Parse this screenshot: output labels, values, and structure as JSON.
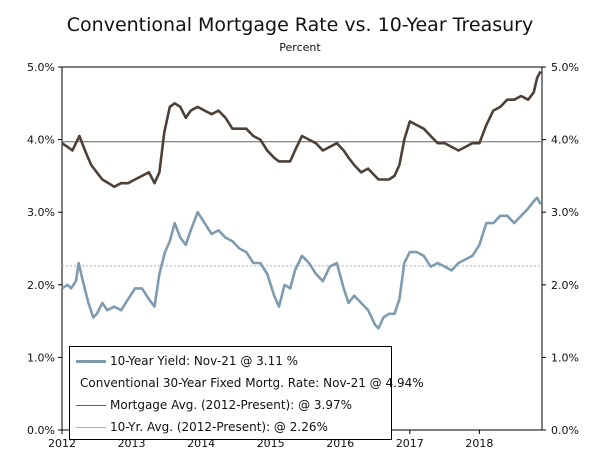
{
  "chart_data": {
    "type": "line",
    "title": "Conventional Mortgage Rate vs. 10-Year Treasury",
    "subtitle": "Percent",
    "xlabel": "",
    "ylabel": "Percent",
    "xlim": [
      2012.0,
      2018.9
    ],
    "ylim": [
      0,
      5
    ],
    "x_ticks": [
      "2012",
      "2013",
      "2014",
      "2015",
      "2016",
      "2017",
      "2018"
    ],
    "y_ticks_left": [
      "0.0%",
      "1.0%",
      "2.0%",
      "3.0%",
      "4.0%",
      "5.0%"
    ],
    "y_ticks_right": [
      "0.0%",
      "1.0%",
      "2.0%",
      "3.0%",
      "4.0%",
      "5.0%"
    ],
    "series": [
      {
        "name": "10-Year Yield",
        "legend": "10-Year Yield: Nov-21 @ 3.11 %",
        "color": "#7f9bb0",
        "x": [
          2012.0,
          2012.08,
          2012.13,
          2012.2,
          2012.24,
          2012.3,
          2012.38,
          2012.45,
          2012.5,
          2012.58,
          2012.65,
          2012.75,
          2012.85,
          2012.95,
          2013.05,
          2013.15,
          2013.25,
          2013.33,
          2013.4,
          2013.48,
          2013.55,
          2013.62,
          2013.7,
          2013.78,
          2013.85,
          2013.95,
          2014.05,
          2014.15,
          2014.25,
          2014.35,
          2014.45,
          2014.55,
          2014.65,
          2014.75,
          2014.85,
          2014.95,
          2015.05,
          2015.12,
          2015.2,
          2015.28,
          2015.35,
          2015.45,
          2015.55,
          2015.65,
          2015.75,
          2015.85,
          2015.95,
          2016.05,
          2016.12,
          2016.2,
          2016.3,
          2016.4,
          2016.5,
          2016.55,
          2016.62,
          2016.7,
          2016.78,
          2016.85,
          2016.92,
          2017.0,
          2017.1,
          2017.2,
          2017.3,
          2017.4,
          2017.5,
          2017.6,
          2017.7,
          2017.8,
          2017.9,
          2018.0,
          2018.1,
          2018.2,
          2018.3,
          2018.4,
          2018.5,
          2018.6,
          2018.7,
          2018.78,
          2018.83,
          2018.88
        ],
        "values": [
          1.95,
          2.0,
          1.95,
          2.05,
          2.3,
          2.05,
          1.75,
          1.55,
          1.6,
          1.75,
          1.65,
          1.7,
          1.65,
          1.8,
          1.95,
          1.95,
          1.8,
          1.7,
          2.15,
          2.45,
          2.6,
          2.85,
          2.65,
          2.55,
          2.75,
          3.0,
          2.85,
          2.7,
          2.75,
          2.65,
          2.6,
          2.5,
          2.45,
          2.3,
          2.3,
          2.15,
          1.85,
          1.7,
          2.0,
          1.95,
          2.2,
          2.4,
          2.3,
          2.15,
          2.05,
          2.25,
          2.3,
          1.95,
          1.75,
          1.85,
          1.75,
          1.65,
          1.45,
          1.4,
          1.55,
          1.6,
          1.6,
          1.8,
          2.3,
          2.45,
          2.45,
          2.4,
          2.25,
          2.3,
          2.25,
          2.2,
          2.3,
          2.35,
          2.4,
          2.55,
          2.85,
          2.85,
          2.95,
          2.95,
          2.85,
          2.95,
          3.05,
          3.15,
          3.2,
          3.11
        ]
      },
      {
        "name": "Conventional 30-Year Fixed Mortg. Rate",
        "legend": "Conventional 30-Year Fixed Mortg. Rate: Nov-21 @ 4.94%",
        "color": "#4d4038",
        "x": [
          2012.0,
          2012.08,
          2012.15,
          2012.2,
          2012.25,
          2012.33,
          2012.42,
          2012.5,
          2012.58,
          2012.67,
          2012.75,
          2012.85,
          2012.95,
          2013.05,
          2013.15,
          2013.25,
          2013.33,
          2013.4,
          2013.47,
          2013.55,
          2013.62,
          2013.7,
          2013.78,
          2013.85,
          2013.95,
          2014.05,
          2014.15,
          2014.25,
          2014.35,
          2014.45,
          2014.55,
          2014.65,
          2014.75,
          2014.85,
          2014.95,
          2015.05,
          2015.12,
          2015.2,
          2015.28,
          2015.35,
          2015.45,
          2015.55,
          2015.65,
          2015.75,
          2015.85,
          2015.95,
          2016.05,
          2016.12,
          2016.2,
          2016.3,
          2016.4,
          2016.5,
          2016.55,
          2016.62,
          2016.7,
          2016.78,
          2016.85,
          2016.92,
          2017.0,
          2017.1,
          2017.2,
          2017.3,
          2017.4,
          2017.5,
          2017.6,
          2017.7,
          2017.8,
          2017.9,
          2018.0,
          2018.1,
          2018.2,
          2018.3,
          2018.4,
          2018.5,
          2018.6,
          2018.7,
          2018.78,
          2018.83,
          2018.88
        ],
        "values": [
          3.95,
          3.9,
          3.85,
          3.95,
          4.05,
          3.85,
          3.65,
          3.55,
          3.45,
          3.4,
          3.35,
          3.4,
          3.4,
          3.45,
          3.5,
          3.55,
          3.4,
          3.55,
          4.1,
          4.45,
          4.5,
          4.45,
          4.3,
          4.4,
          4.45,
          4.4,
          4.35,
          4.4,
          4.3,
          4.15,
          4.15,
          4.15,
          4.05,
          4.0,
          3.85,
          3.75,
          3.7,
          3.7,
          3.7,
          3.85,
          4.05,
          4.0,
          3.95,
          3.85,
          3.9,
          3.95,
          3.85,
          3.75,
          3.65,
          3.55,
          3.6,
          3.5,
          3.45,
          3.45,
          3.45,
          3.5,
          3.65,
          4.0,
          4.25,
          4.2,
          4.15,
          4.05,
          3.95,
          3.95,
          3.9,
          3.85,
          3.9,
          3.95,
          3.95,
          4.2,
          4.4,
          4.45,
          4.55,
          4.55,
          4.6,
          4.55,
          4.65,
          4.85,
          4.94
        ]
      }
    ],
    "reference_lines": [
      {
        "name": "Mortgage Avg. (2012-Present)",
        "legend": "Mortgage Avg. (2012-Present): @ 3.97%",
        "value": 3.97,
        "color": "#6e625a"
      },
      {
        "name": "10-Yr. Avg. (2012-Present)",
        "legend": "10-Yr. Avg. (2012-Present): @ 2.26%",
        "value": 2.26,
        "color": "#9fb6c7"
      }
    ],
    "legend_position": "bottom-left",
    "grid": false
  }
}
